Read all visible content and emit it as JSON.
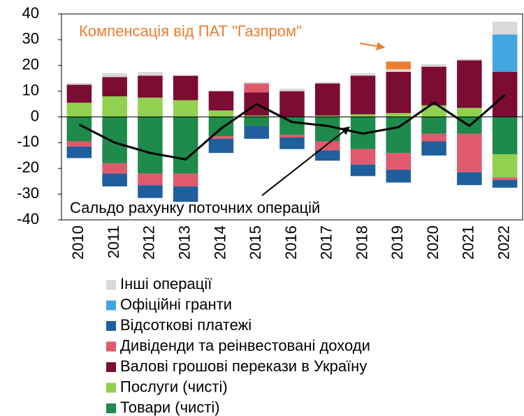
{
  "chart_data": {
    "type": "bar",
    "stacked": true,
    "categories": [
      "2010",
      "2011",
      "2012",
      "2013",
      "2014",
      "2015",
      "2016",
      "2017",
      "2018",
      "2019",
      "2020",
      "2021",
      "2022"
    ],
    "ylim": [
      -40,
      40
    ],
    "yticks": [
      -40,
      -30,
      -20,
      -10,
      0,
      10,
      20,
      30,
      40
    ],
    "series": [
      {
        "name": "Товари (чисті)",
        "color": "#1e8a4c",
        "values": [
          -9.5,
          -18,
          -22,
          -22,
          -7.5,
          -3.5,
          -7,
          -9.5,
          -12.5,
          -14,
          -6.5,
          -6.5,
          -14.5
        ]
      },
      {
        "name": "Послуги (чисті)",
        "color": "#92d050",
        "values": [
          5.5,
          8,
          7.5,
          6.5,
          2.5,
          0.5,
          0,
          0.5,
          1,
          1.5,
          4.5,
          3.5,
          -9
        ]
      },
      {
        "name": "Валові грошові перекази в Україну",
        "color": "#7b0c33",
        "values": [
          7,
          7.5,
          8.5,
          9.5,
          7.5,
          9,
          10,
          12.5,
          15,
          16,
          15,
          18.5,
          17.5
        ]
      },
      {
        "name": "Дивіденди та реінвестовані доходи",
        "color": "#e05a6e",
        "values": [
          -2,
          -4,
          -4.5,
          -5,
          -1,
          3.5,
          -1,
          -3.5,
          -6,
          -6.5,
          -3,
          -15,
          -1
        ]
      },
      {
        "name": "Відсоткові платежі",
        "color": "#1f5f9b",
        "values": [
          -4.5,
          -5,
          -5,
          -6,
          -5.5,
          -5,
          -4.5,
          -4,
          -4.5,
          -5,
          -5.5,
          -5,
          -3
        ]
      },
      {
        "name": "Офіційні гранти",
        "color": "#41a6e0",
        "values": [
          null,
          null,
          null,
          null,
          null,
          null,
          null,
          null,
          null,
          null,
          null,
          null,
          14.5
        ]
      },
      {
        "name": "Інші операції",
        "color": "#d9d9d9",
        "values": [
          0.7,
          1.5,
          1.5,
          0,
          0,
          0.5,
          1,
          0.5,
          1,
          1,
          1,
          0.5,
          5
        ]
      },
      {
        "name": "Компенсація від ПАТ \"Газпром\"",
        "color": "#ed7d31",
        "legend": false,
        "values": [
          null,
          null,
          null,
          null,
          null,
          null,
          null,
          null,
          null,
          3,
          null,
          null,
          null
        ]
      },
      {
        "name": "Сальдо рахунку поточних операцій",
        "color": "#000000",
        "type": "line",
        "legend": false,
        "values": [
          -3,
          -10,
          -14,
          -16.5,
          -4.5,
          5,
          -2,
          -3.5,
          -6.5,
          -4,
          5.5,
          -3.5,
          8.5
        ]
      }
    ]
  }
}
